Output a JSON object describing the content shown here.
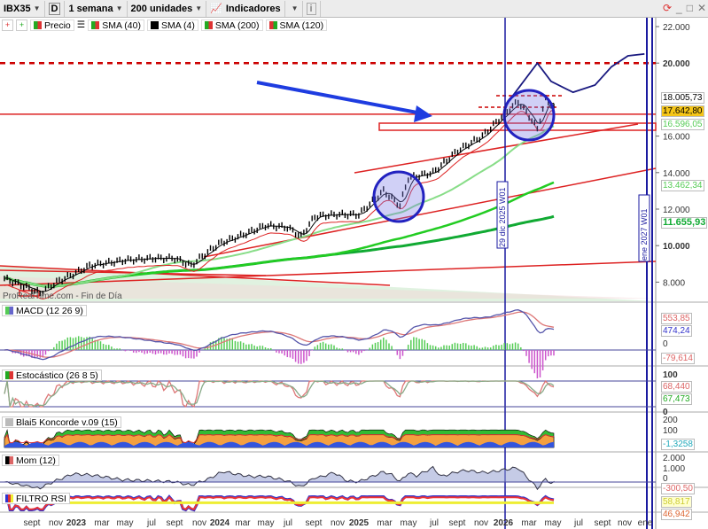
{
  "toolbar": {
    "symbol": "IBX35",
    "period_mode": "D",
    "timeframe": "1 semana",
    "units": "200 unidades",
    "indicators": "Indicadores",
    "info": "i"
  },
  "legend": {
    "items": [
      {
        "label": "Precio",
        "color": "#d33"
      },
      {
        "label": "SMA (40)",
        "color": "#e33"
      },
      {
        "label": "SMA (4)",
        "color": "#000"
      },
      {
        "label": "SMA (200)",
        "color": "#2a2"
      },
      {
        "label": "SMA (120)",
        "color": "#5d5"
      }
    ]
  },
  "watermark": "ProRealTime.com - Fin de Día",
  "panels": {
    "macd": "MACD (12 26 9)",
    "stoch": "Estocástico (26 8 5)",
    "koncorde": "Blai5 Koncorde v.09 (15)",
    "mom": "Mom (12)",
    "rsi": "FILTRO RSI"
  },
  "vlines": {
    "a": "29 dic 2025 W01",
    "b": "ene 2027 W01"
  },
  "price_tags": {
    "high": "18.005,73",
    "last": "17.642,80",
    "sma_a": "16.596,05",
    "sma_b": "13.462,34",
    "sma_c": "11.655,93"
  },
  "indicator_tags": {
    "macd1": "553,85",
    "macd2": "474,24",
    "macd_hist": "-79,614",
    "stoch1": "68,440",
    "stoch2": "67,473",
    "konc": "-1,3258",
    "mom": "-300,50",
    "rsi1": "58,817",
    "rsi2": "46,942"
  },
  "chart_data": {
    "type": "line",
    "title": "IBX35 1 semana",
    "yticks": [
      "22.000",
      "20.000",
      "16.000",
      "14.000",
      "12.000",
      "10.000",
      "8.000"
    ],
    "ytick_values": [
      22000,
      20000,
      16000,
      14000,
      12000,
      10000,
      8000
    ],
    "ylim": [
      7400,
      22500
    ],
    "xticks": [
      "sept",
      "nov",
      "2023",
      "mar",
      "may",
      "jul",
      "sept",
      "nov",
      "2024",
      "mar",
      "may",
      "jul",
      "sept",
      "nov",
      "2025",
      "mar",
      "may",
      "jul",
      "sept",
      "nov",
      "2026",
      "mar",
      "may",
      "jul",
      "sept",
      "nov",
      "ene"
    ],
    "price": [
      [
        0,
        8200
      ],
      [
        5,
        7900
      ],
      [
        10,
        7600
      ],
      [
        13,
        7400
      ],
      [
        19,
        8000
      ],
      [
        26,
        8500
      ],
      [
        31,
        8900
      ],
      [
        35,
        9000
      ],
      [
        44,
        9200
      ],
      [
        54,
        9300
      ],
      [
        62,
        9300
      ],
      [
        68,
        8900
      ],
      [
        71,
        9300
      ],
      [
        78,
        10100
      ],
      [
        87,
        10600
      ],
      [
        95,
        11100
      ],
      [
        103,
        11000
      ],
      [
        108,
        10500
      ],
      [
        113,
        11600
      ],
      [
        121,
        11700
      ],
      [
        129,
        11700
      ],
      [
        138,
        13000
      ],
      [
        144,
        12200
      ],
      [
        147,
        13700
      ],
      [
        156,
        14000
      ],
      [
        165,
        15200
      ],
      [
        174,
        16000
      ],
      [
        182,
        17200
      ],
      [
        187,
        17900
      ],
      [
        191,
        17100
      ],
      [
        194,
        16400
      ],
      [
        197,
        18000
      ],
      [
        200,
        17640
      ]
    ],
    "projection": [
      [
        184,
        18000
      ],
      [
        194,
        20000
      ],
      [
        199,
        19000
      ],
      [
        207,
        18400
      ],
      [
        215,
        18800
      ],
      [
        221,
        19800
      ],
      [
        227,
        20400
      ],
      [
        233,
        20500
      ]
    ],
    "levels": [
      20000,
      17200,
      18050,
      17500
    ],
    "macd_ticks": [
      "0"
    ],
    "stoch_ticks": [
      "100",
      "0"
    ],
    "konc_ticks": [
      "200",
      "100"
    ],
    "mom_ticks": [
      "2.000",
      "1.000",
      "0"
    ]
  }
}
